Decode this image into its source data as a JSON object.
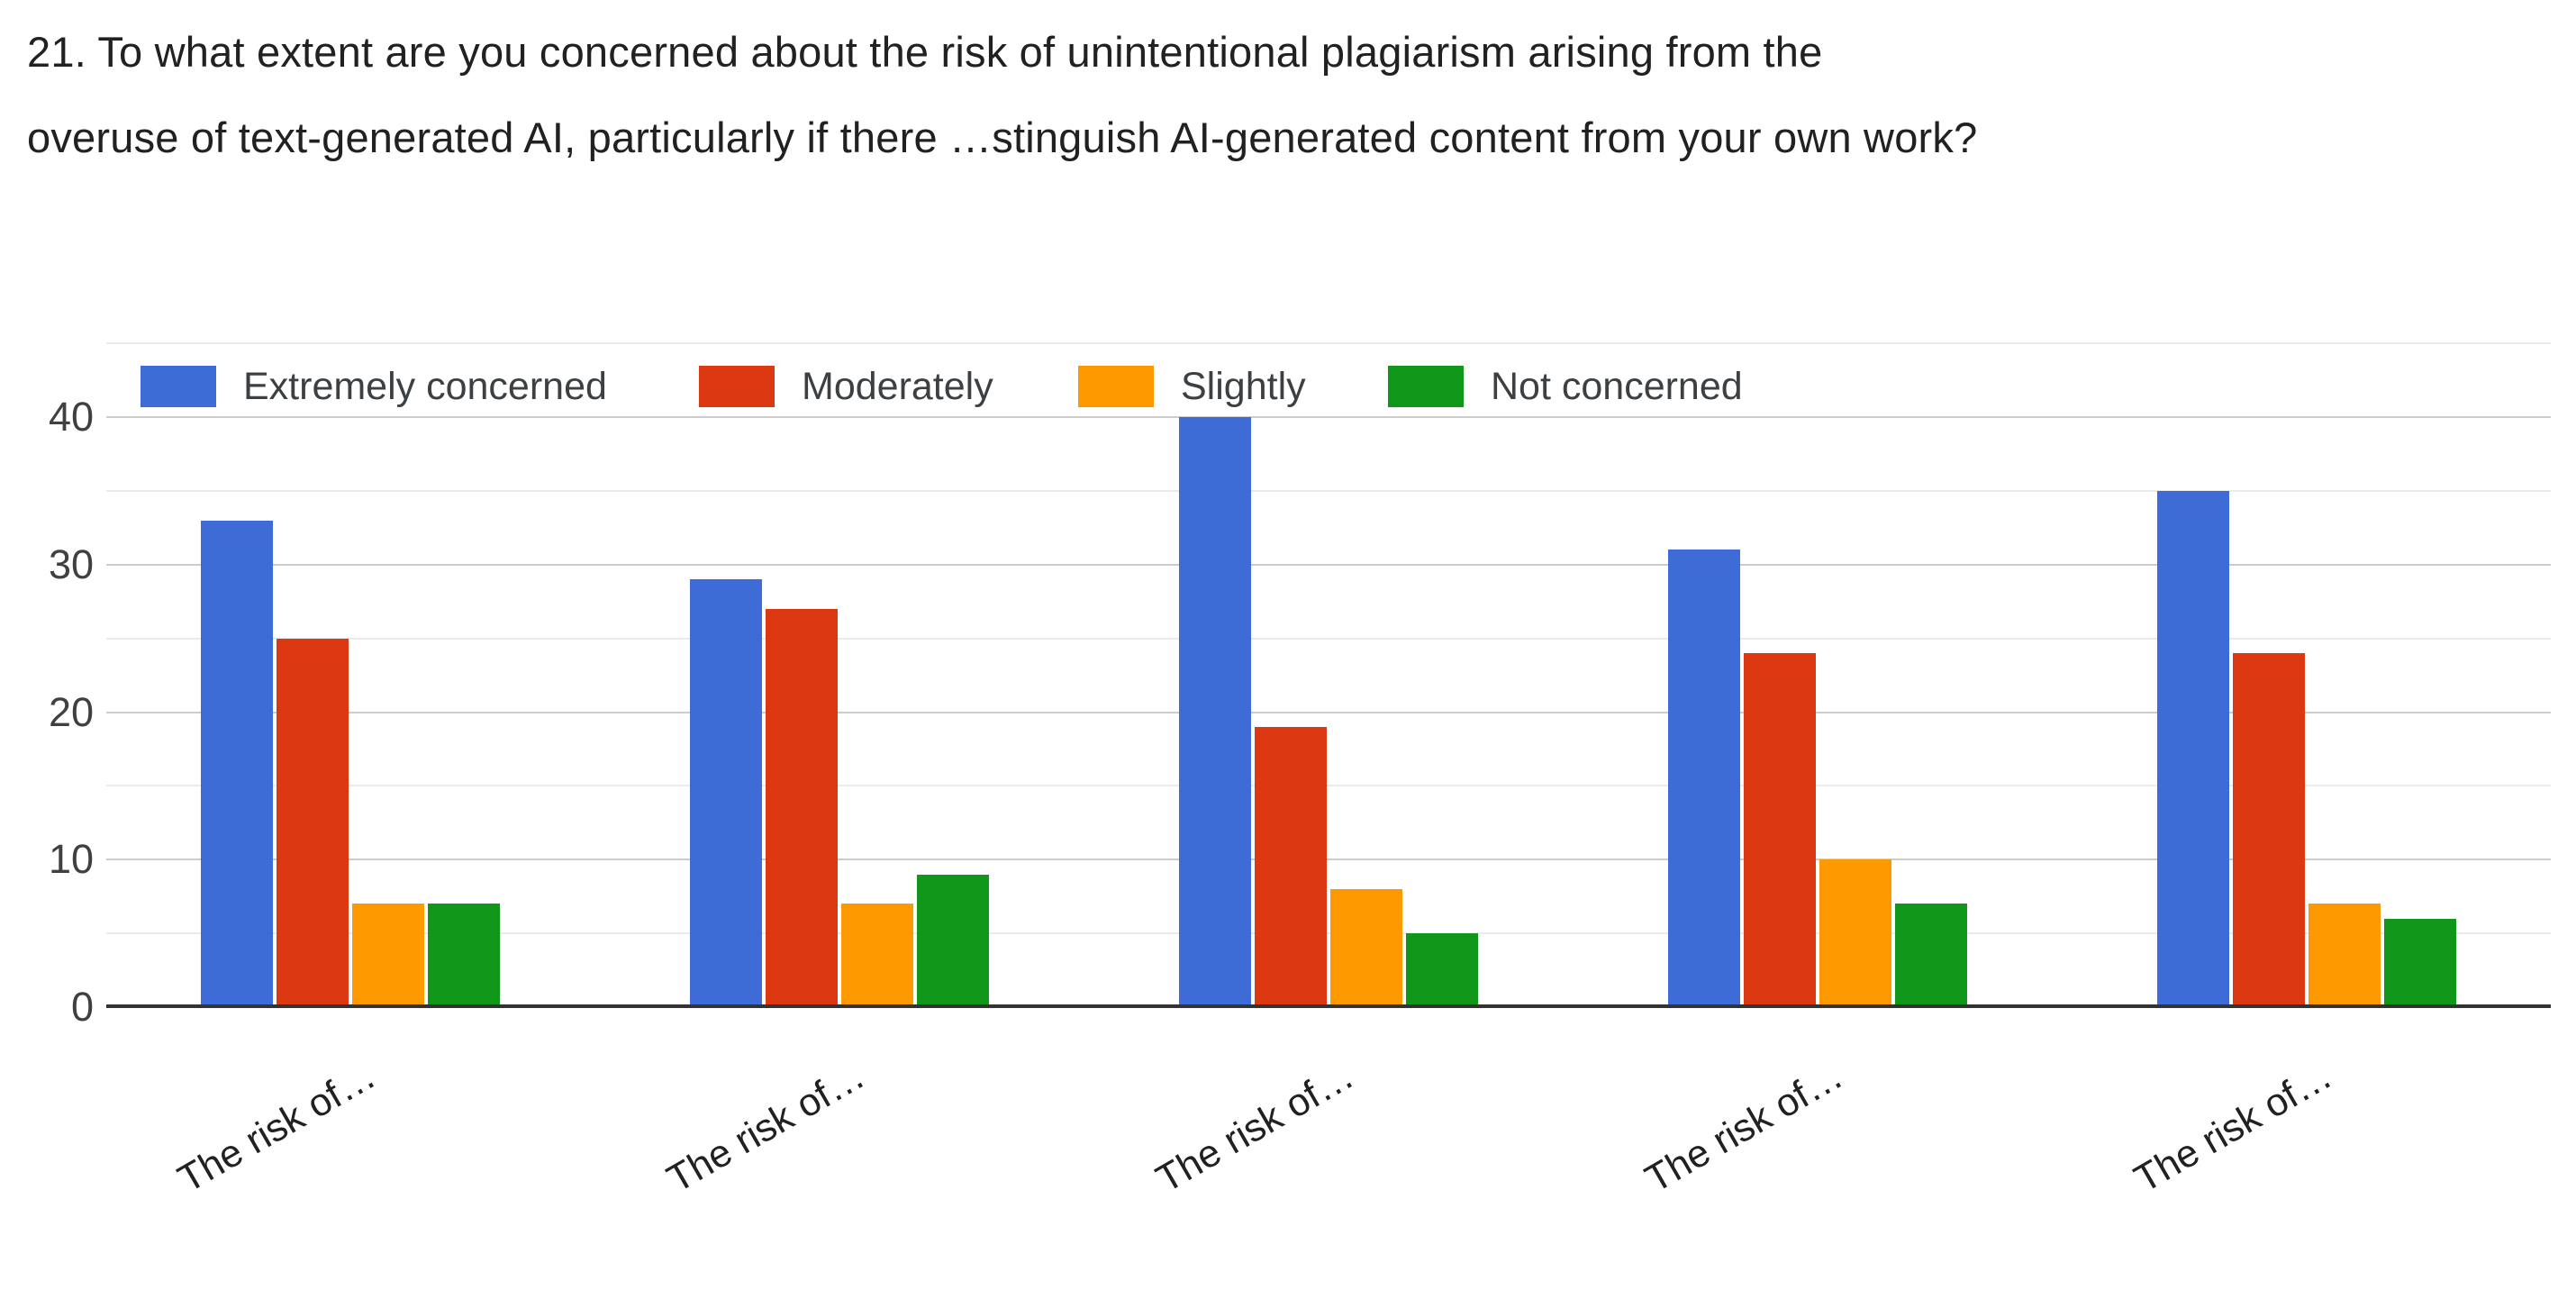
{
  "title": {
    "full": "21. To what extent are you concerned about the risk of unintentional plagiarism arising from the overuse of text-generated AI, particularly if there …stinguish AI-generated content from your own work?",
    "lines": [
      "21. To what extent are you concerned about the risk of unintentional plagiarism arising from the",
      "overuse of text-generated AI, particularly if there …stinguish AI-generated content from your own work?"
    ]
  },
  "colors": {
    "extremely_concerned": "#3d6cd7",
    "moderately": "#dc3912",
    "slightly": "#ff9900",
    "not_concerned": "#109618",
    "grid_major": "#cccccc",
    "grid_minor": "#ebebeb",
    "axis": "#333333",
    "text": "#212121",
    "tick_text": "#404040",
    "legend_text": "#3c4043"
  },
  "legend": {
    "position": "top",
    "items": [
      {
        "label": "Extremely concerned",
        "color": "#3d6cd7"
      },
      {
        "label": "Moderately",
        "color": "#dc3912"
      },
      {
        "label": "Slightly",
        "color": "#ff9900"
      },
      {
        "label": "Not concerned",
        "color": "#109618"
      }
    ]
  },
  "chart_data": {
    "type": "bar",
    "title": "21. To what extent are you concerned about the risk of unintentional plagiarism arising from the overuse of text-generated AI, particularly if there …stinguish AI-generated content from your own work?",
    "categories": [
      "The risk of…",
      "The risk of…",
      "The risk of…",
      "The risk of…",
      "The risk of…"
    ],
    "series": [
      {
        "name": "Extremely concerned",
        "color": "#3d6cd7",
        "values": [
          33,
          29,
          40,
          31,
          35
        ]
      },
      {
        "name": "Moderately",
        "color": "#dc3912",
        "values": [
          25,
          27,
          19,
          24,
          24
        ]
      },
      {
        "name": "Slightly",
        "color": "#ff9900",
        "values": [
          7,
          7,
          8,
          10,
          7
        ]
      },
      {
        "name": "Not concerned",
        "color": "#109618",
        "values": [
          7,
          9,
          5,
          7,
          6
        ]
      }
    ],
    "xlabel": "",
    "ylabel": "",
    "y_axis": {
      "tick_labels": [
        0,
        10,
        20,
        30,
        40
      ],
      "minor_gridlines": [
        5,
        15,
        25,
        35,
        45
      ],
      "min": 0,
      "max": 45
    },
    "grid": true,
    "legend_position": "top"
  }
}
